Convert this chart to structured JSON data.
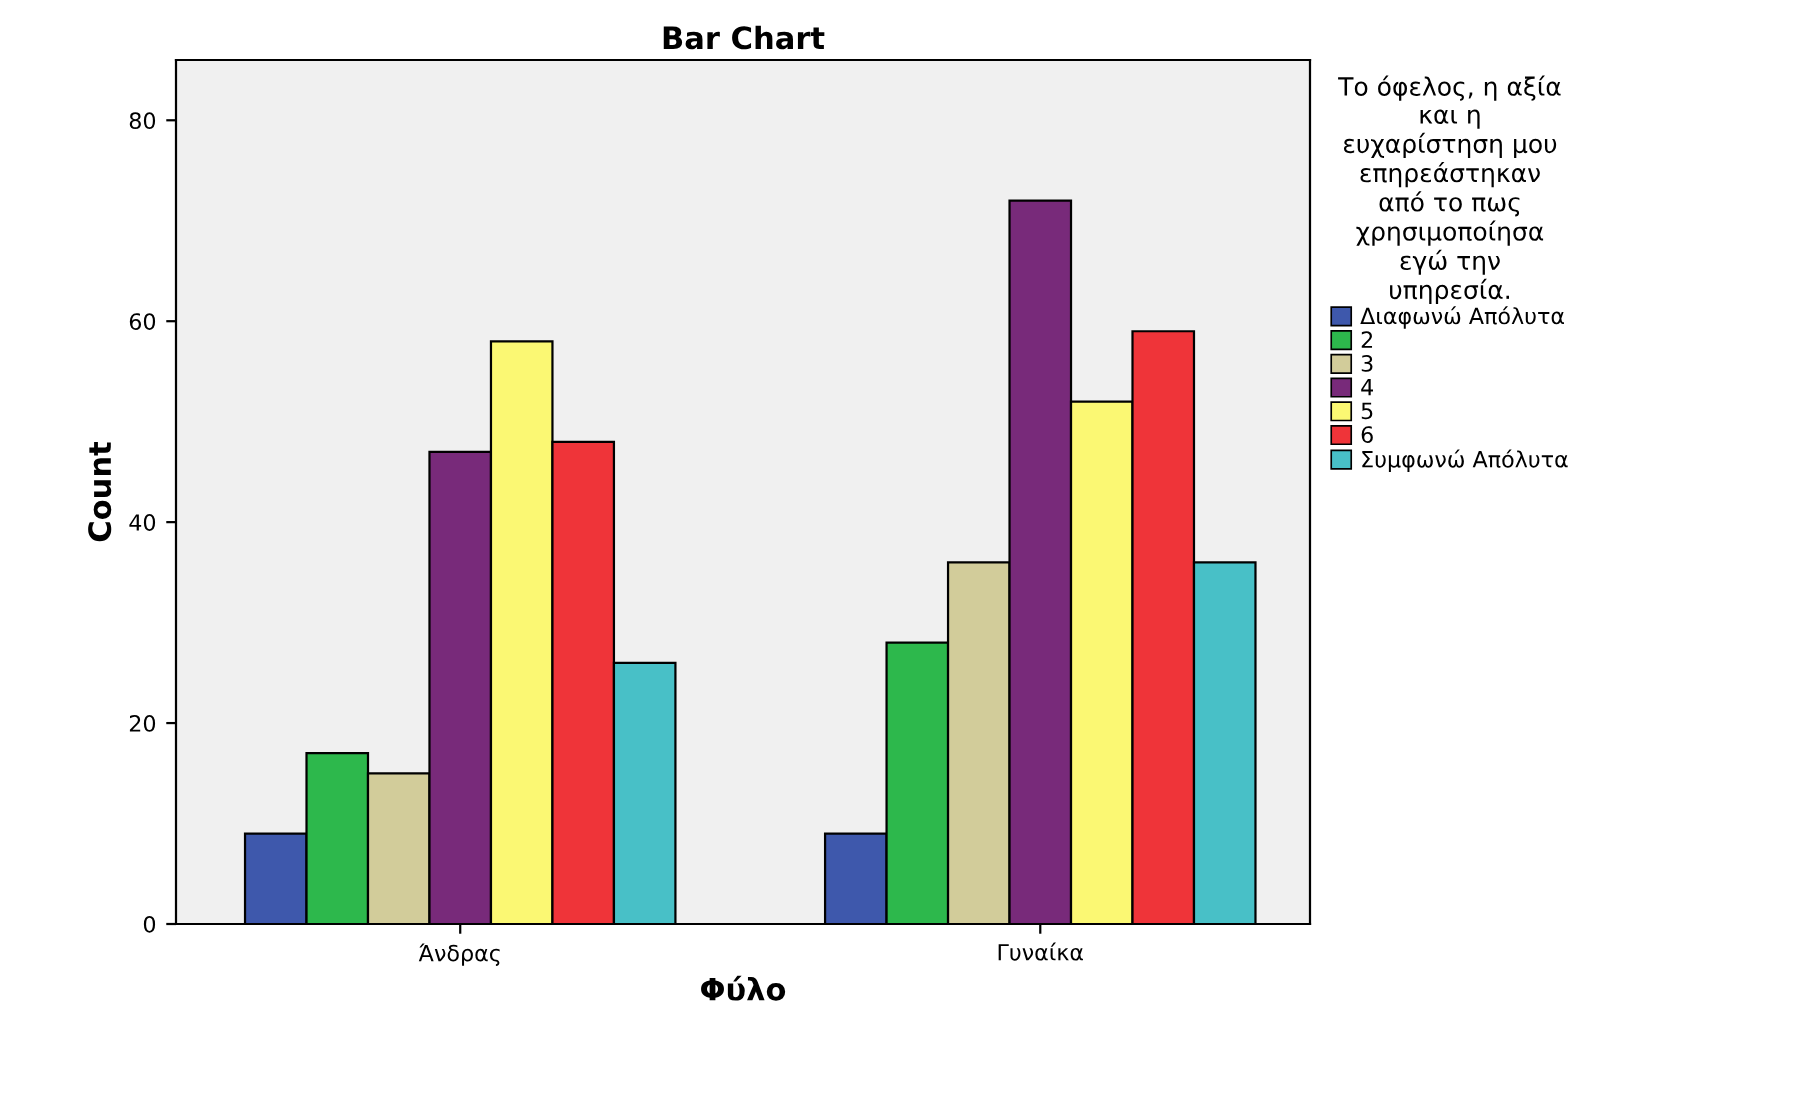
{
  "chart_data": {
    "type": "bar",
    "title": "Bar Chart",
    "xlabel": "Φύλο",
    "ylabel": "Count",
    "categories": [
      "Άνδρας",
      "Γυναίκα"
    ],
    "legend_title": "Το όφελος, η αξία\nκαι η\nευχαρίστηση μου\nεπηρεάστηκαν\nαπό το πως\nχρησιμοποίησα\nεγώ την\nυπηρεσία.",
    "series": [
      {
        "name": "Διαφωνώ Απόλυτα",
        "color": "#3e58ac",
        "values": [
          9,
          9
        ]
      },
      {
        "name": "2",
        "color": "#2db84c",
        "values": [
          17,
          28
        ]
      },
      {
        "name": "3",
        "color": "#d2cc9a",
        "values": [
          15,
          36
        ]
      },
      {
        "name": "4",
        "color": "#782a7a",
        "values": [
          47,
          72
        ]
      },
      {
        "name": "5",
        "color": "#fbf873",
        "values": [
          58,
          52
        ]
      },
      {
        "name": "6",
        "color": "#ef3439",
        "values": [
          48,
          59
        ]
      },
      {
        "name": "Συμφωνώ Απόλυτα",
        "color": "#48c0c7",
        "values": [
          26,
          36
        ]
      }
    ],
    "ylim": [
      0,
      86
    ],
    "yticks": [
      0,
      20,
      40,
      60,
      80
    ],
    "grid": false,
    "legend": "right"
  }
}
